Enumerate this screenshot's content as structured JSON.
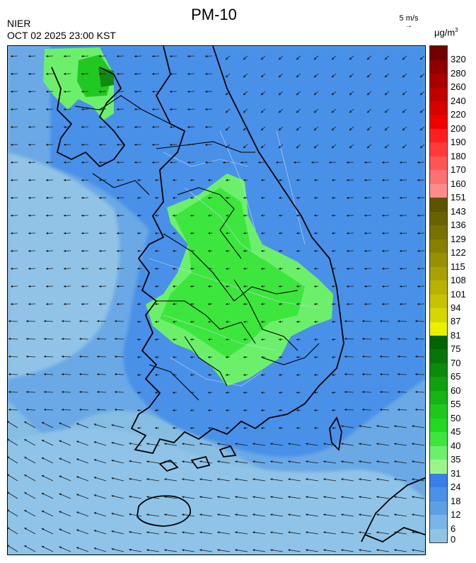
{
  "title": "PM-10",
  "agency": "NIER",
  "timestamp": "OCT 02 2025 23:00 KST",
  "wind_reference": {
    "label": "5 m/s",
    "arrow": "→"
  },
  "unit": {
    "base": "μg/m",
    "exp": "3"
  },
  "colors": {
    "ocean_low": "#86bde3",
    "ocean_mid": "#5d9fe3",
    "land_blue": "#4a90e8",
    "green_light": "#7ef07e",
    "green_mid": "#44e044",
    "green_dark": "#1ea01e",
    "coast": "#000000"
  },
  "legend": {
    "labels": [
      "0",
      "6",
      "12",
      "18",
      "24",
      "31",
      "35",
      "40",
      "45",
      "50",
      "55",
      "60",
      "65",
      "70",
      "75",
      "81",
      "87",
      "94",
      "101",
      "108",
      "115",
      "122",
      "129",
      "136",
      "143",
      "151",
      "160",
      "170",
      "180",
      "190",
      "200",
      "220",
      "240",
      "260",
      "280",
      "320"
    ],
    "colors": [
      "#90c3e6",
      "#7ab5e8",
      "#5d9fe3",
      "#4a90e8",
      "#3a7fe6",
      "#9cf58c",
      "#6cf06c",
      "#3de63d",
      "#22d822",
      "#1cc81c",
      "#14b414",
      "#0f9f0f",
      "#0b8a0b",
      "#077507",
      "#046404",
      "#e9f000",
      "#d6d600",
      "#c8c300",
      "#b8b200",
      "#a8a200",
      "#989000",
      "#887f00",
      "#787000",
      "#6a6200",
      "#5c5500",
      "#ff8c8c",
      "#ff7070",
      "#ff5555",
      "#ff3a3a",
      "#ff1f1f",
      "#f00000",
      "#d80000",
      "#c00000",
      "#a80000",
      "#900000",
      "#700000"
    ]
  }
}
